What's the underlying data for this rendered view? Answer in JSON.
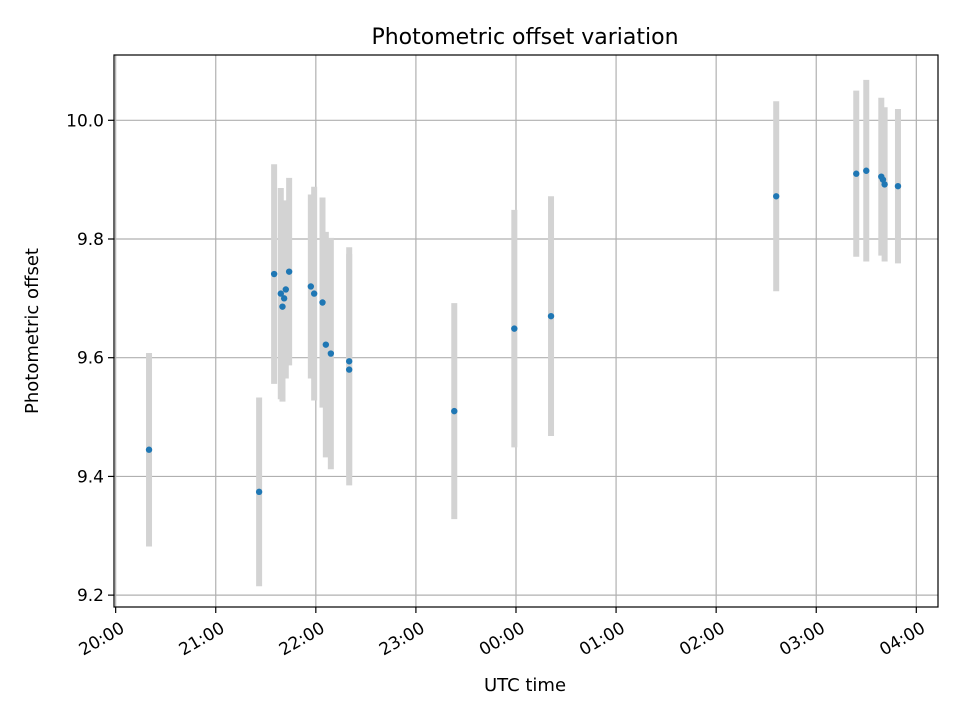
{
  "chart_data": {
    "type": "scatter",
    "title": "Photometric offset variation",
    "xlabel": "UTC time",
    "ylabel": "Photometric offset",
    "x_tick_labels": [
      "20:00",
      "21:00",
      "22:00",
      "23:00",
      "00:00",
      "01:00",
      "02:00",
      "03:00",
      "04:00"
    ],
    "y_tick_labels": [
      "9.2",
      "9.4",
      "9.6",
      "9.8",
      "10.0"
    ],
    "y_ticks": [
      9.2,
      9.4,
      9.6,
      9.8,
      10.0
    ],
    "xlim": [
      "19:59",
      "04:13"
    ],
    "ylim": [
      9.18,
      10.11
    ],
    "grid": true,
    "colors": {
      "point": "#1f77b4",
      "errorbar": "#d3d3d3",
      "grid": "#b0b0b0"
    },
    "points": [
      {
        "time": "20:20",
        "y": 9.445,
        "err": 0.163
      },
      {
        "time": "21:26",
        "y": 9.374,
        "err": 0.159
      },
      {
        "time": "21:35",
        "y": 9.741,
        "err": 0.185
      },
      {
        "time": "21:39",
        "y": 9.708,
        "err": 0.178
      },
      {
        "time": "21:40",
        "y": 9.686,
        "err": 0.16
      },
      {
        "time": "21:41",
        "y": 9.7,
        "err": 0.13
      },
      {
        "time": "21:42",
        "y": 9.715,
        "err": 0.15
      },
      {
        "time": "21:44",
        "y": 9.745,
        "err": 0.158
      },
      {
        "time": "21:57",
        "y": 9.72,
        "err": 0.155
      },
      {
        "time": "21:59",
        "y": 9.708,
        "err": 0.18
      },
      {
        "time": "22:04",
        "y": 9.693,
        "err": 0.177
      },
      {
        "time": "22:06",
        "y": 9.622,
        "err": 0.19
      },
      {
        "time": "22:09",
        "y": 9.607,
        "err": 0.195
      },
      {
        "time": "22:20",
        "y": 9.594,
        "err": 0.192
      },
      {
        "time": "22:20",
        "y": 9.58,
        "err": 0.195
      },
      {
        "time": "23:23",
        "y": 9.51,
        "err": 0.182
      },
      {
        "time": "23:59",
        "y": 9.649,
        "err": 0.2
      },
      {
        "time": "00:21",
        "y": 9.67,
        "err": 0.202
      },
      {
        "time": "02:36",
        "y": 9.872,
        "err": 0.16
      },
      {
        "time": "03:24",
        "y": 9.91,
        "err": 0.14
      },
      {
        "time": "03:30",
        "y": 9.915,
        "err": 0.153
      },
      {
        "time": "03:39",
        "y": 9.905,
        "err": 0.133
      },
      {
        "time": "03:40",
        "y": 9.9,
        "err": 0.12
      },
      {
        "time": "03:41",
        "y": 9.892,
        "err": 0.13
      },
      {
        "time": "03:49",
        "y": 9.889,
        "err": 0.13
      }
    ]
  }
}
